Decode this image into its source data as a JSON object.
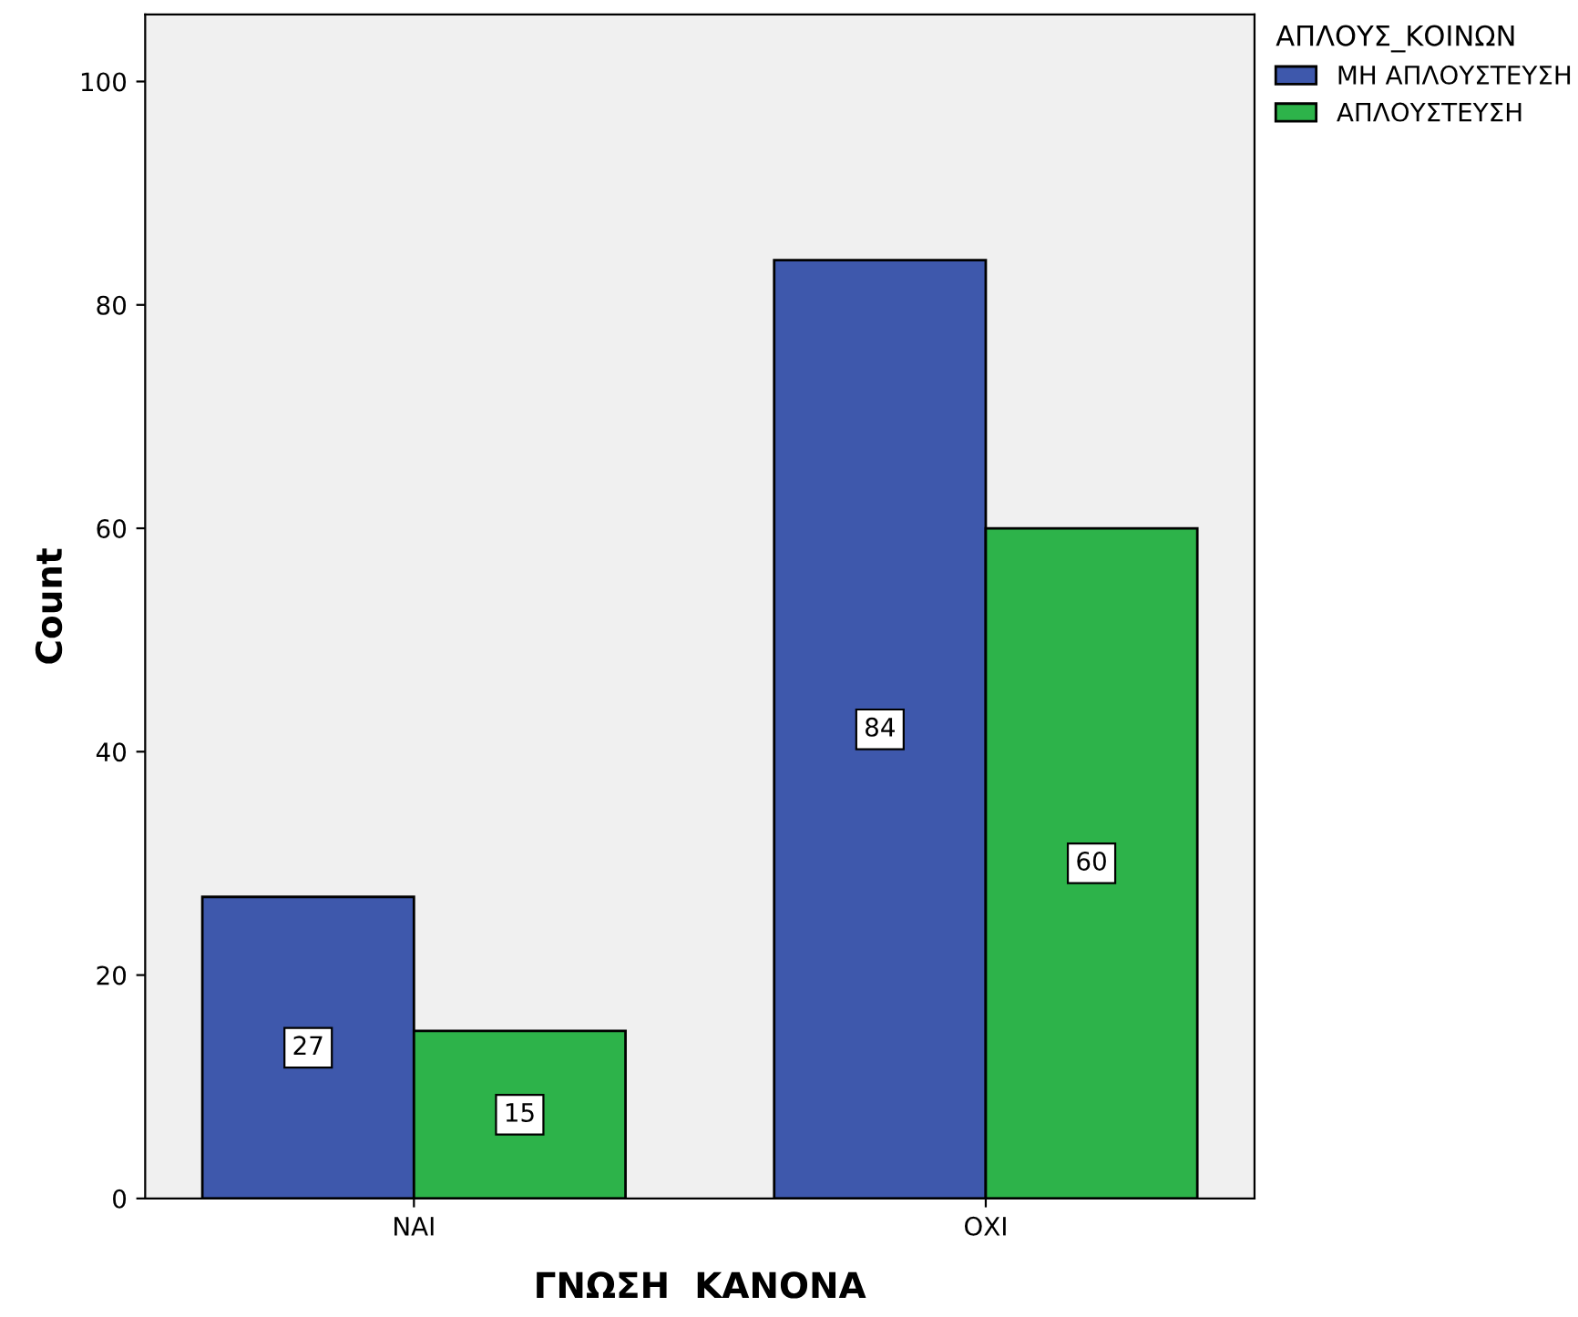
{
  "chart_data": {
    "type": "bar",
    "xlabel": "ΓΝΩΣΗ  ΚΑΝΟΝΑ",
    "ylabel": "Count",
    "legend_title": "ΑΠΛΟΥΣ_ΚΟΙΝΩΝ",
    "categories": [
      "ΝΑΙ",
      "ΟΧΙ"
    ],
    "series": [
      {
        "name": "ΜΗ ΑΠΛΟΥΣΤΕΥΣΗ",
        "color": "#3e58ac",
        "values": [
          27,
          84
        ]
      },
      {
        "name": "ΑΠΛΟΥΣΤΕΥΣΗ",
        "color": "#2db34a",
        "values": [
          15,
          60
        ]
      }
    ],
    "ylim": [
      0,
      106
    ],
    "yticks": [
      0,
      20,
      40,
      60,
      80,
      100
    ],
    "grid": false,
    "legend": "top right",
    "data_labels": true
  }
}
